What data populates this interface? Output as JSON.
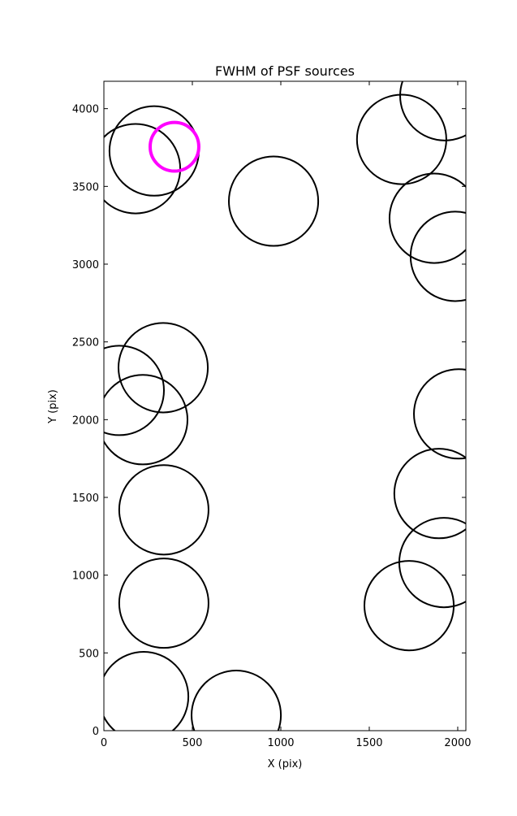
{
  "chart_data": {
    "type": "scatter",
    "title": "FWHM of PSF sources",
    "x_label": "X (pix)",
    "y_label": "Y (pix)",
    "xlim": [
      0,
      2046
    ],
    "ylim": [
      0,
      4176
    ],
    "xticks": [
      0,
      500,
      1000,
      1500,
      2000
    ],
    "yticks": [
      0,
      500,
      1000,
      1500,
      2000,
      2500,
      3000,
      3500,
      4000
    ],
    "series": [
      {
        "color": "#000000",
        "size": 505,
        "x": [
          284,
          179,
          1927,
          1683,
          959,
          1867,
          1986,
          335,
          87,
          220,
          2005,
          1894,
          1922,
          339,
          339,
          1725,
          225,
          748
        ],
        "values": [
          3728,
          3614,
          4083,
          3802,
          3405,
          3295,
          3050,
          2334,
          2188,
          2000,
          2037,
          1525,
          1081,
          1420,
          820,
          804,
          219,
          99
        ]
      },
      {
        "color": "#ff00ff",
        "size": 275,
        "x": [
          399
        ],
        "values": [
          3755
        ]
      }
    ]
  }
}
